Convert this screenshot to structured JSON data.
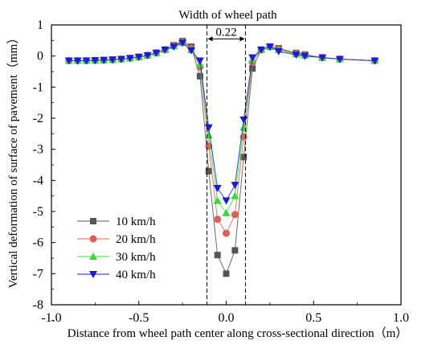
{
  "chart_data": {
    "type": "line",
    "title": "",
    "xlabel": "Distance from wheel path center along cross-sectional direction（m）",
    "ylabel": "Vertical deformation of surface of pavement（mm）",
    "xlim": [
      -1.0,
      1.0
    ],
    "ylim": [
      -8,
      1
    ],
    "xticks": [
      -1.0,
      -0.5,
      0.0,
      0.5,
      1.0
    ],
    "xtick_labels": [
      "-1.0",
      "-0.5",
      "0.0",
      "0.5",
      "1.0"
    ],
    "yticks": [
      1,
      0,
      -1,
      -2,
      -3,
      -4,
      -5,
      -6,
      -7,
      -8
    ],
    "ytick_labels": [
      "1",
      "0",
      "-1",
      "-2",
      "-3",
      "-4",
      "-5",
      "-6",
      "-7",
      "-8"
    ],
    "grid": false,
    "legend_position": "lower-left",
    "annotations": {
      "wheel_path_label": "Width of wheel path",
      "wheel_path_width": "0.22",
      "dashed_lines_x": [
        -0.11,
        0.11
      ]
    },
    "series": [
      {
        "name": "10 km/h",
        "color": "#555555",
        "marker": "square",
        "x": [
          -0.9,
          -0.85,
          -0.8,
          -0.75,
          -0.7,
          -0.65,
          -0.6,
          -0.55,
          -0.5,
          -0.45,
          -0.4,
          -0.35,
          -0.3,
          -0.25,
          -0.2,
          -0.15,
          -0.1,
          -0.05,
          0.0,
          0.05,
          0.1,
          0.15,
          0.2,
          0.25,
          0.3,
          0.4,
          0.45,
          0.55,
          0.65,
          0.85
        ],
        "y": [
          -0.15,
          -0.15,
          -0.15,
          -0.14,
          -0.13,
          -0.12,
          -0.1,
          -0.07,
          -0.03,
          0.02,
          0.1,
          0.2,
          0.35,
          0.48,
          0.3,
          -0.65,
          -3.7,
          -6.4,
          -7.0,
          -6.25,
          -3.25,
          -0.4,
          0.2,
          0.3,
          0.25,
          0.1,
          0.05,
          -0.05,
          -0.1,
          -0.15
        ]
      },
      {
        "name": "20 km/h",
        "color": "#e06050",
        "marker": "circle",
        "x": [
          -0.9,
          -0.85,
          -0.8,
          -0.75,
          -0.7,
          -0.65,
          -0.6,
          -0.55,
          -0.5,
          -0.45,
          -0.4,
          -0.35,
          -0.3,
          -0.25,
          -0.2,
          -0.15,
          -0.1,
          -0.05,
          0.0,
          0.05,
          0.1,
          0.15,
          0.2,
          0.25,
          0.3,
          0.4,
          0.45,
          0.55,
          0.65,
          0.85
        ],
        "y": [
          -0.15,
          -0.15,
          -0.15,
          -0.14,
          -0.13,
          -0.12,
          -0.1,
          -0.07,
          -0.03,
          0.02,
          0.1,
          0.2,
          0.33,
          0.45,
          0.25,
          -0.35,
          -2.9,
          -5.25,
          -5.7,
          -5.1,
          -2.6,
          -0.2,
          0.2,
          0.3,
          0.22,
          0.08,
          0.03,
          -0.05,
          -0.1,
          -0.15
        ]
      },
      {
        "name": "30 km/h",
        "color": "#33dd33",
        "marker": "triangle-up",
        "x": [
          -0.9,
          -0.85,
          -0.8,
          -0.75,
          -0.7,
          -0.65,
          -0.6,
          -0.55,
          -0.5,
          -0.45,
          -0.4,
          -0.35,
          -0.3,
          -0.25,
          -0.2,
          -0.15,
          -0.1,
          -0.05,
          0.0,
          0.05,
          0.1,
          0.15,
          0.2,
          0.25,
          0.3,
          0.4,
          0.45,
          0.55,
          0.65,
          0.85
        ],
        "y": [
          -0.15,
          -0.15,
          -0.15,
          -0.14,
          -0.13,
          -0.12,
          -0.1,
          -0.07,
          -0.03,
          0.02,
          0.1,
          0.2,
          0.32,
          0.43,
          0.2,
          -0.25,
          -2.55,
          -4.65,
          -5.05,
          -4.5,
          -2.3,
          -0.1,
          0.2,
          0.3,
          0.2,
          0.06,
          0.02,
          -0.05,
          -0.1,
          -0.15
        ]
      },
      {
        "name": "40 km/h",
        "color": "#1a1adf",
        "marker": "triangle-down",
        "x": [
          -0.9,
          -0.85,
          -0.8,
          -0.75,
          -0.7,
          -0.65,
          -0.6,
          -0.55,
          -0.5,
          -0.45,
          -0.4,
          -0.35,
          -0.3,
          -0.25,
          -0.2,
          -0.15,
          -0.1,
          -0.05,
          0.0,
          0.05,
          0.1,
          0.15,
          0.2,
          0.25,
          0.3,
          0.4,
          0.45,
          0.55,
          0.65,
          0.85
        ],
        "y": [
          -0.15,
          -0.15,
          -0.15,
          -0.14,
          -0.13,
          -0.12,
          -0.1,
          -0.07,
          -0.03,
          0.02,
          0.1,
          0.2,
          0.3,
          0.42,
          0.18,
          -0.15,
          -2.3,
          -4.25,
          -4.65,
          -4.15,
          -2.05,
          -0.05,
          0.2,
          0.3,
          0.15,
          0.04,
          0.0,
          -0.05,
          -0.1,
          -0.15
        ]
      }
    ]
  }
}
